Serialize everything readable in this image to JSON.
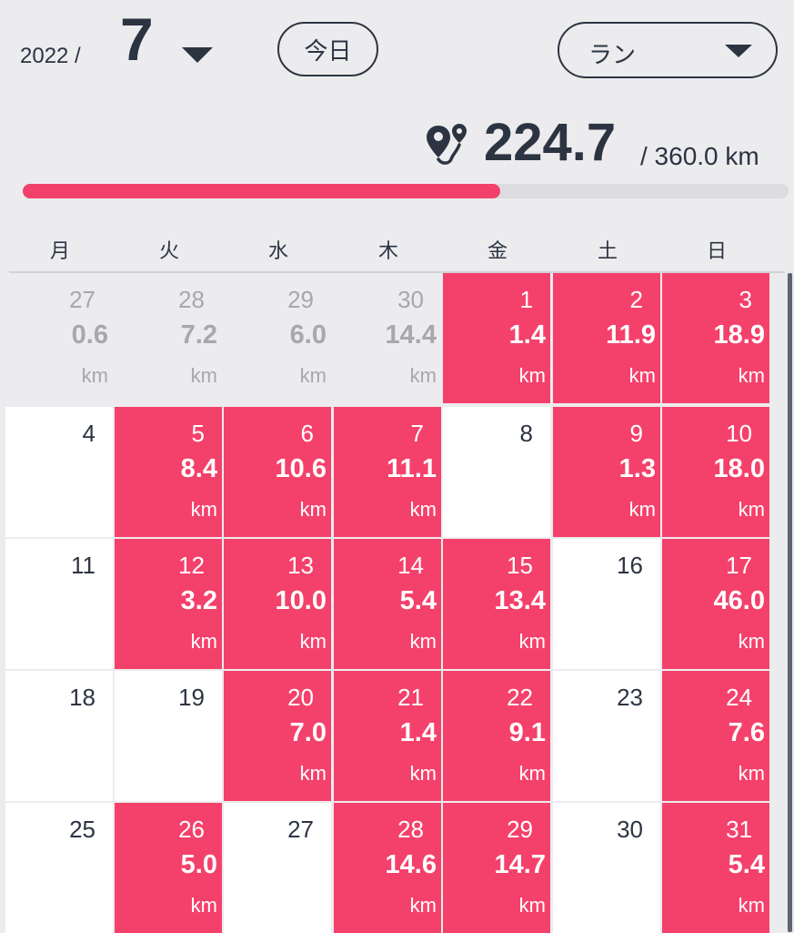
{
  "header": {
    "year_label": "2022 /",
    "month_label": "7",
    "today_button": "今日",
    "activity_selected": "ラン"
  },
  "summary": {
    "total": "224.7",
    "goal_label": "/ 360.0  km",
    "progress_fraction": 0.624
  },
  "colors": {
    "accent": "#f4416b",
    "text": "#2c3442",
    "muted": "#a7a7ad",
    "background": "#ececee"
  },
  "weekdays": [
    "月",
    "火",
    "水",
    "木",
    "金",
    "土",
    "日"
  ],
  "weeks": [
    [
      {
        "day": "27",
        "dist": "0.6",
        "unit": "km",
        "state": "prev"
      },
      {
        "day": "28",
        "dist": "7.2",
        "unit": "km",
        "state": "prev"
      },
      {
        "day": "29",
        "dist": "6.0",
        "unit": "km",
        "state": "prev"
      },
      {
        "day": "30",
        "dist": "14.4",
        "unit": "km",
        "state": "prev"
      },
      {
        "day": "1",
        "dist": "1.4",
        "unit": "km",
        "state": "filled"
      },
      {
        "day": "2",
        "dist": "11.9",
        "unit": "km",
        "state": "filled"
      },
      {
        "day": "3",
        "dist": "18.9",
        "unit": "km",
        "state": "filled"
      }
    ],
    [
      {
        "day": "4",
        "state": "empty"
      },
      {
        "day": "5",
        "dist": "8.4",
        "unit": "km",
        "state": "filled"
      },
      {
        "day": "6",
        "dist": "10.6",
        "unit": "km",
        "state": "filled"
      },
      {
        "day": "7",
        "dist": "11.1",
        "unit": "km",
        "state": "filled"
      },
      {
        "day": "8",
        "state": "empty"
      },
      {
        "day": "9",
        "dist": "1.3",
        "unit": "km",
        "state": "filled"
      },
      {
        "day": "10",
        "dist": "18.0",
        "unit": "km",
        "state": "filled"
      }
    ],
    [
      {
        "day": "11",
        "state": "empty"
      },
      {
        "day": "12",
        "dist": "3.2",
        "unit": "km",
        "state": "filled"
      },
      {
        "day": "13",
        "dist": "10.0",
        "unit": "km",
        "state": "filled"
      },
      {
        "day": "14",
        "dist": "5.4",
        "unit": "km",
        "state": "filled"
      },
      {
        "day": "15",
        "dist": "13.4",
        "unit": "km",
        "state": "filled"
      },
      {
        "day": "16",
        "state": "empty"
      },
      {
        "day": "17",
        "dist": "46.0",
        "unit": "km",
        "state": "filled"
      }
    ],
    [
      {
        "day": "18",
        "state": "empty"
      },
      {
        "day": "19",
        "state": "empty"
      },
      {
        "day": "20",
        "dist": "7.0",
        "unit": "km",
        "state": "filled"
      },
      {
        "day": "21",
        "dist": "1.4",
        "unit": "km",
        "state": "filled"
      },
      {
        "day": "22",
        "dist": "9.1",
        "unit": "km",
        "state": "filled"
      },
      {
        "day": "23",
        "state": "empty"
      },
      {
        "day": "24",
        "dist": "7.6",
        "unit": "km",
        "state": "filled"
      }
    ],
    [
      {
        "day": "25",
        "state": "empty"
      },
      {
        "day": "26",
        "dist": "5.0",
        "unit": "km",
        "state": "filled"
      },
      {
        "day": "27",
        "state": "empty"
      },
      {
        "day": "28",
        "dist": "14.6",
        "unit": "km",
        "state": "filled"
      },
      {
        "day": "29",
        "dist": "14.7",
        "unit": "km",
        "state": "filled"
      },
      {
        "day": "30",
        "state": "empty"
      },
      {
        "day": "31",
        "dist": "5.4",
        "unit": "km",
        "state": "filled"
      }
    ]
  ]
}
